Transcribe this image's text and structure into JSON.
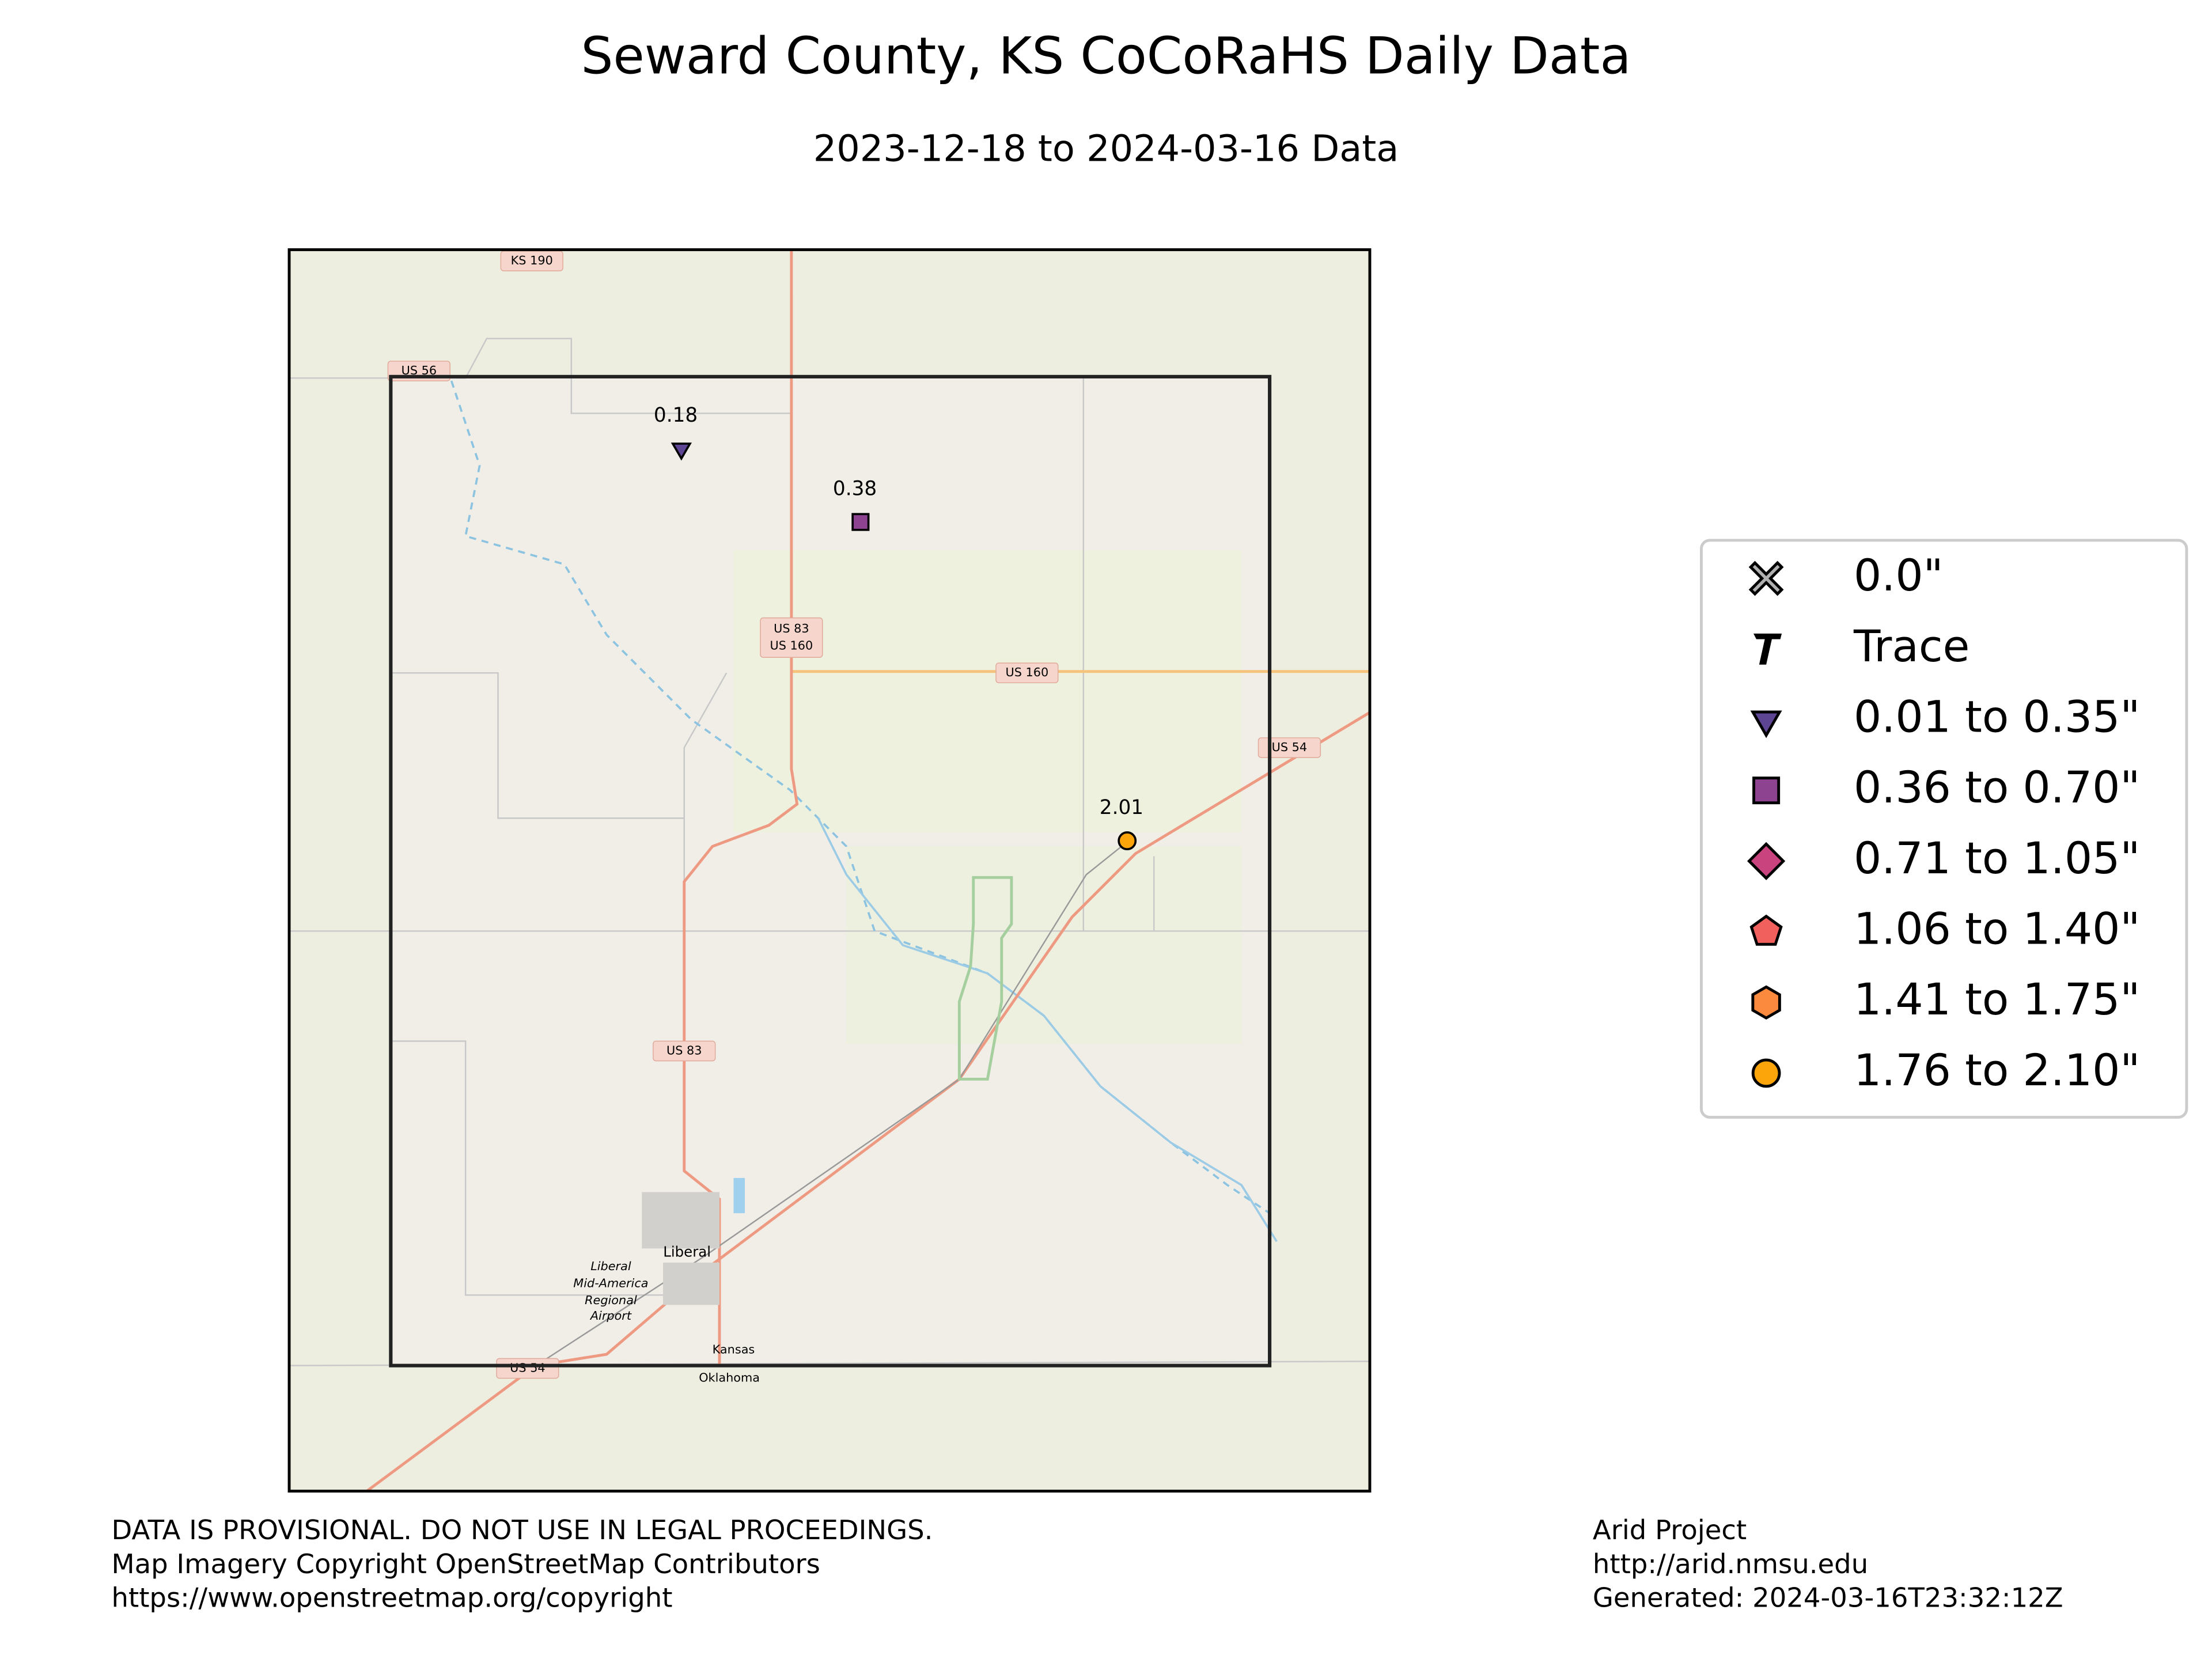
{
  "header": {
    "title": "Seward County, KS CoCoRaHS Daily Data",
    "subtitle": "2023-12-18 to 2024-03-16 Data"
  },
  "map": {
    "labels": [
      "KS 190",
      "US 56",
      "US 83",
      "US 160",
      "US 160",
      "US 54",
      "US 83",
      "Liberal",
      "Liberal",
      "Mid-America",
      "Regional",
      "Airport",
      "Kansas",
      "Oklahoma",
      "US 54"
    ],
    "stations": [
      {
        "label": "0.18",
        "marker": "triangle",
        "color": "#5e4593"
      },
      {
        "label": "0.38",
        "marker": "square",
        "color": "#8d4390"
      },
      {
        "label": "2.01",
        "marker": "circle",
        "color": "#fca50a"
      }
    ]
  },
  "legend": [
    {
      "label": "0.0\"",
      "marker": "x",
      "color": "#b0b0b0"
    },
    {
      "label": "Trace",
      "marker": "t",
      "color": "#000000"
    },
    {
      "label": "0.01 to 0.35\"",
      "marker": "triangle",
      "color": "#5e4593"
    },
    {
      "label": "0.36 to 0.70\"",
      "marker": "square",
      "color": "#8d4390"
    },
    {
      "label": "0.71 to 1.05\"",
      "marker": "diamond",
      "color": "#c9437e"
    },
    {
      "label": "1.06 to 1.40\"",
      "marker": "pentagon",
      "color": "#f1605d"
    },
    {
      "label": "1.41 to 1.75\"",
      "marker": "hexagon",
      "color": "#fb8a3f"
    },
    {
      "label": "1.76 to 2.10\"",
      "marker": "circle",
      "color": "#fca50a"
    }
  ],
  "footer": {
    "left": [
      "DATA IS PROVISIONAL. DO NOT USE IN LEGAL PROCEEDINGS.",
      "Map Imagery Copyright OpenStreetMap Contributors",
      "https://www.openstreetmap.org/copyright"
    ],
    "right": [
      "Arid Project",
      "http://arid.nmsu.edu",
      "Generated: 2024-03-16T23:32:12Z"
    ]
  }
}
